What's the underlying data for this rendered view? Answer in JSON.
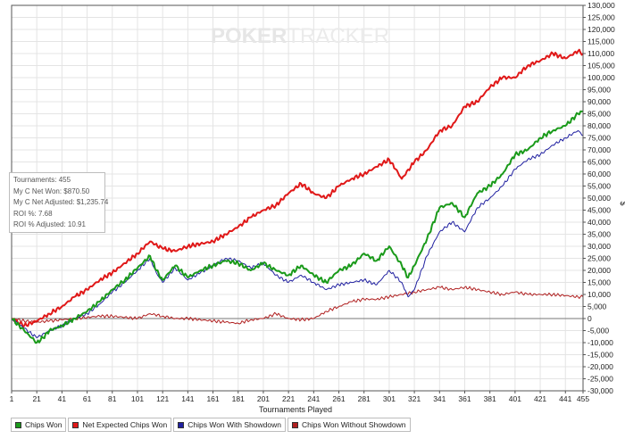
{
  "logo": {
    "brand_bold": "POKER",
    "brand_light": "TRACKER"
  },
  "stats": {
    "tournaments": "Tournaments: 455",
    "net_won": "My C Net Won: $870.50",
    "net_adjusted": "My C Net Adjusted: $1,235.74",
    "roi": "ROI %: 7.68",
    "roi_adjusted": "ROI % Adjusted: 10.91"
  },
  "legend": [
    {
      "label": "Chips Won",
      "color": "#1a9a1a"
    },
    {
      "label": "Net Expected Chips Won",
      "color": "#e01818"
    },
    {
      "label": "Chips Won With Showdown",
      "color": "#2020a0"
    },
    {
      "label": "Chips Won Without Showdown",
      "color": "#b02020"
    }
  ],
  "chart_data": {
    "type": "line",
    "xlabel": "Tournaments Played",
    "ylabel": "",
    "xlim": [
      1,
      455
    ],
    "ylim": [
      -30000,
      130000
    ],
    "x_ticks": [
      1,
      21,
      41,
      61,
      81,
      101,
      121,
      141,
      161,
      181,
      201,
      221,
      241,
      261,
      281,
      301,
      321,
      341,
      361,
      381,
      401,
      421,
      441,
      455
    ],
    "y_ticks": [
      -30000,
      -25000,
      -20000,
      -15000,
      -10000,
      -5000,
      0,
      5000,
      10000,
      15000,
      20000,
      25000,
      30000,
      35000,
      40000,
      45000,
      50000,
      55000,
      60000,
      65000,
      70000,
      75000,
      80000,
      85000,
      90000,
      95000,
      100000,
      105000,
      110000,
      115000,
      120000,
      125000,
      130000
    ],
    "y_tick_labels": [
      "-30,000",
      "-25,000",
      "-20,000",
      "-15,000",
      "-10,000",
      "-5,000",
      "0",
      "5,000",
      "10,000",
      "15,000",
      "20,000",
      "25,000",
      "30,000",
      "35,000",
      "40,000",
      "45,000",
      "50,000",
      "55,000",
      "60,000",
      "65,000",
      "70,000",
      "75,000",
      "80,000",
      "85,000",
      "90,000",
      "95,000",
      "100,000",
      "105,000",
      "110,000",
      "115,000",
      "120,000",
      "125,000",
      "130,000"
    ],
    "y_unit_label": "$",
    "grid": true,
    "legend_position": "bottom-left",
    "series": [
      {
        "name": "Net Expected Chips Won",
        "color": "#e01818",
        "width": 2,
        "x": [
          1,
          11,
          21,
          31,
          41,
          51,
          61,
          71,
          81,
          91,
          101,
          111,
          121,
          131,
          141,
          151,
          161,
          171,
          181,
          191,
          201,
          211,
          221,
          231,
          241,
          251,
          261,
          271,
          281,
          291,
          301,
          306,
          311,
          321,
          331,
          341,
          351,
          361,
          371,
          381,
          391,
          401,
          411,
          421,
          431,
          441,
          451,
          455
        ],
        "y": [
          0,
          -3000,
          -1000,
          2000,
          5000,
          9000,
          12000,
          16000,
          19000,
          23000,
          27000,
          32000,
          29000,
          28000,
          30000,
          31000,
          32000,
          35000,
          38000,
          42000,
          45000,
          47000,
          52000,
          56000,
          52000,
          50000,
          55000,
          58000,
          60000,
          63000,
          66000,
          62000,
          58000,
          65000,
          70000,
          78000,
          80000,
          88000,
          90000,
          96000,
          100000,
          100000,
          105000,
          107000,
          110000,
          108000,
          111000,
          110000
        ]
      },
      {
        "name": "Chips Won",
        "color": "#1a9a1a",
        "width": 2,
        "x": [
          1,
          11,
          21,
          26,
          31,
          41,
          51,
          61,
          71,
          81,
          91,
          101,
          111,
          116,
          121,
          131,
          141,
          151,
          161,
          171,
          181,
          191,
          201,
          211,
          221,
          231,
          241,
          251,
          261,
          271,
          281,
          291,
          301,
          311,
          316,
          321,
          331,
          341,
          351,
          361,
          371,
          381,
          391,
          401,
          411,
          421,
          431,
          441,
          451,
          455
        ],
        "y": [
          0,
          -5000,
          -10000,
          -8000,
          -5000,
          -3000,
          0,
          3000,
          7000,
          12000,
          16000,
          21000,
          26000,
          20000,
          16000,
          22000,
          17000,
          20000,
          22000,
          24000,
          23000,
          20000,
          23000,
          20000,
          18000,
          22000,
          18000,
          15000,
          20000,
          22000,
          27000,
          24000,
          30000,
          22000,
          17000,
          22000,
          33000,
          46000,
          48000,
          42000,
          52000,
          55000,
          60000,
          68000,
          70000,
          75000,
          78000,
          80000,
          85000,
          86000
        ]
      },
      {
        "name": "Chips Won With Showdown",
        "color": "#2020a0",
        "width": 1,
        "x": [
          1,
          11,
          21,
          31,
          41,
          51,
          61,
          71,
          81,
          91,
          101,
          111,
          116,
          121,
          131,
          141,
          151,
          161,
          171,
          181,
          191,
          201,
          211,
          221,
          231,
          241,
          251,
          261,
          271,
          281,
          291,
          301,
          311,
          316,
          321,
          331,
          341,
          351,
          361,
          371,
          381,
          391,
          401,
          411,
          421,
          431,
          441,
          451,
          455
        ],
        "y": [
          0,
          -4000,
          -8000,
          -5000,
          -3000,
          0,
          2000,
          6000,
          11000,
          15000,
          20000,
          25000,
          19000,
          15000,
          21000,
          16000,
          19000,
          22000,
          25000,
          24000,
          21000,
          23000,
          18000,
          15000,
          18000,
          15000,
          12000,
          14000,
          15000,
          16000,
          14000,
          20000,
          15000,
          9000,
          12000,
          26000,
          36000,
          40000,
          36000,
          46000,
          50000,
          55000,
          62000,
          66000,
          68000,
          72000,
          75000,
          78000,
          76000
        ]
      },
      {
        "name": "Chips Won Without Showdown",
        "color": "#b02020",
        "width": 1,
        "x": [
          1,
          11,
          21,
          31,
          41,
          51,
          61,
          71,
          81,
          91,
          101,
          111,
          121,
          131,
          141,
          151,
          161,
          171,
          181,
          191,
          201,
          211,
          221,
          231,
          241,
          251,
          261,
          271,
          281,
          291,
          301,
          311,
          321,
          331,
          341,
          351,
          361,
          371,
          381,
          391,
          401,
          411,
          421,
          431,
          441,
          451,
          455
        ],
        "y": [
          0,
          -1000,
          -1500,
          -1000,
          -500,
          0,
          500,
          1000,
          1000,
          500,
          0,
          2000,
          1000,
          0,
          0,
          -500,
          -1000,
          -1500,
          -2000,
          -500,
          0,
          2000,
          0,
          -500,
          0,
          3000,
          5000,
          7000,
          8000,
          8000,
          9000,
          10000,
          11000,
          12000,
          13000,
          12000,
          13000,
          12000,
          11000,
          10000,
          11000,
          10000,
          10000,
          10000,
          9500,
          9000,
          9000
        ]
      }
    ]
  }
}
